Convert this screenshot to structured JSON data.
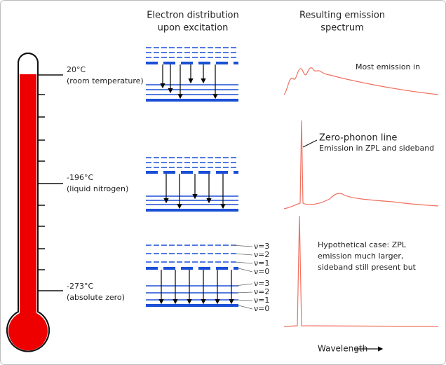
{
  "headers": {
    "distribution": [
      "Electron distribution",
      "upon excitation"
    ],
    "spectrum": [
      "Resulting emission",
      "spectrum"
    ]
  },
  "temperatures": [
    {
      "temp": "20°C",
      "note": "(room temperature)"
    },
    {
      "temp": "-196°C",
      "note": "(liquid nitrogen)"
    },
    {
      "temp": "-273°C",
      "note": "(absolute zero)"
    }
  ],
  "spectra": [
    {
      "lines": [
        "Most emission in"
      ]
    },
    {
      "title": "Zero-phonon line",
      "lines": [
        "Emission in ZPL and sideband"
      ]
    },
    {
      "lines": [
        "Hypothetical case: ZPL",
        "emission much larger,",
        "sideband still present but"
      ]
    }
  ],
  "levels": {
    "excited": [
      "ν=3",
      "ν=2",
      "ν=1",
      "ν=0"
    ],
    "ground": [
      "ν=3",
      "ν=2",
      "ν=1",
      "ν=0"
    ]
  },
  "x_axis": {
    "label": "Wavelength"
  }
}
